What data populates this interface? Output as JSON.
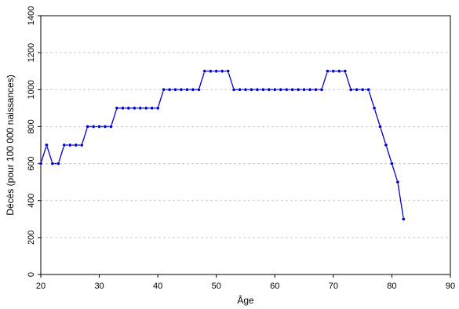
{
  "chart_data": {
    "type": "line",
    "title": "",
    "xlabel": "Âge",
    "ylabel": "Décès (pour 100 000 naissances)",
    "xlim": [
      20,
      90
    ],
    "ylim": [
      0,
      1400
    ],
    "xticks": [
      20,
      30,
      40,
      50,
      60,
      70,
      80,
      90
    ],
    "yticks": [
      0,
      200,
      400,
      600,
      800,
      1000,
      1200,
      1400
    ],
    "grid": "horizontal dashed",
    "legend": "none",
    "series": [
      {
        "color": "#0000cc",
        "x": [
          20,
          21,
          22,
          23,
          24,
          25,
          26,
          27,
          28,
          29,
          30,
          31,
          32,
          33,
          34,
          35,
          36,
          37,
          38,
          39,
          40,
          41,
          42,
          43,
          44,
          45,
          46,
          47,
          48,
          49,
          50,
          51,
          52,
          53,
          54,
          55,
          56,
          57,
          58,
          59,
          60,
          61,
          62,
          63,
          64,
          65,
          66,
          67,
          68,
          69,
          70,
          71,
          72,
          73,
          74,
          75,
          76,
          77,
          78,
          79,
          80,
          81,
          82
        ],
        "y": [
          600,
          700,
          600,
          600,
          700,
          700,
          700,
          700,
          800,
          800,
          800,
          800,
          800,
          900,
          900,
          900,
          900,
          900,
          900,
          900,
          900,
          1000,
          1000,
          1000,
          1000,
          1000,
          1000,
          1000,
          1100,
          1100,
          1100,
          1100,
          1100,
          1000,
          1000,
          1000,
          1000,
          1000,
          1000,
          1000,
          1000,
          1000,
          1000,
          1000,
          1000,
          1000,
          1000,
          1000,
          1000,
          1100,
          1100,
          1100,
          1100,
          1000,
          1000,
          1000,
          1000,
          900,
          800,
          700,
          600,
          500,
          300
        ]
      }
    ]
  }
}
